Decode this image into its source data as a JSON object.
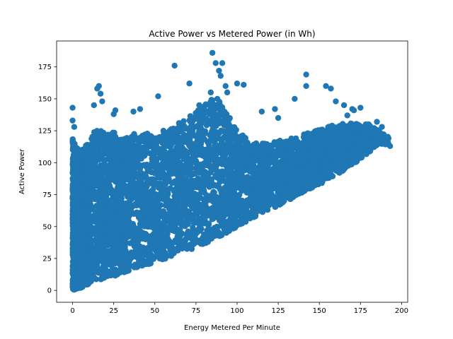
{
  "chart_data": {
    "type": "scatter",
    "title": "Active Power vs Metered Power (in Wh)",
    "xlabel": "Energy Metered Per Minute",
    "ylabel": "Active Power",
    "xlim": [
      -9.7,
      203.7
    ],
    "ylim": [
      -9.3,
      195.3
    ],
    "xticks": [
      0,
      25,
      50,
      75,
      100,
      125,
      150,
      175,
      200
    ],
    "yticks": [
      0,
      25,
      50,
      75,
      100,
      125,
      150,
      175
    ],
    "grid": false,
    "legend": "none",
    "marker": "circle",
    "point_color": "#1f77b4",
    "cloud_bands": [
      {
        "x": 0,
        "y_low": 0,
        "y_high": 120
      },
      {
        "x": 2,
        "y_low": 1,
        "y_high": 112
      },
      {
        "x": 5,
        "y_low": 2,
        "y_high": 110
      },
      {
        "x": 10,
        "y_low": 5,
        "y_high": 118
      },
      {
        "x": 15,
        "y_low": 7,
        "y_high": 128
      },
      {
        "x": 20,
        "y_low": 9,
        "y_high": 122
      },
      {
        "x": 25,
        "y_low": 11,
        "y_high": 125
      },
      {
        "x": 30,
        "y_low": 13,
        "y_high": 118
      },
      {
        "x": 40,
        "y_low": 18,
        "y_high": 124
      },
      {
        "x": 50,
        "y_low": 22,
        "y_high": 122
      },
      {
        "x": 60,
        "y_low": 26,
        "y_high": 128
      },
      {
        "x": 70,
        "y_low": 31,
        "y_high": 135
      },
      {
        "x": 80,
        "y_low": 36,
        "y_high": 145
      },
      {
        "x": 85,
        "y_low": 39,
        "y_high": 150
      },
      {
        "x": 90,
        "y_low": 42,
        "y_high": 148
      },
      {
        "x": 100,
        "y_low": 50,
        "y_high": 125
      },
      {
        "x": 110,
        "y_low": 57,
        "y_high": 115
      },
      {
        "x": 120,
        "y_low": 63,
        "y_high": 116
      },
      {
        "x": 130,
        "y_low": 70,
        "y_high": 118
      },
      {
        "x": 140,
        "y_low": 76,
        "y_high": 122
      },
      {
        "x": 150,
        "y_low": 83,
        "y_high": 126
      },
      {
        "x": 160,
        "y_low": 90,
        "y_high": 130
      },
      {
        "x": 170,
        "y_low": 98,
        "y_high": 131
      },
      {
        "x": 180,
        "y_low": 108,
        "y_high": 130
      },
      {
        "x": 186,
        "y_low": 115,
        "y_high": 125
      },
      {
        "x": 192,
        "y_low": 114,
        "y_high": 120
      }
    ],
    "outliers": [
      [
        0,
        143
      ],
      [
        0,
        133
      ],
      [
        1,
        128
      ],
      [
        15,
        158
      ],
      [
        16,
        160
      ],
      [
        17,
        154
      ],
      [
        13,
        145
      ],
      [
        18,
        148
      ],
      [
        25,
        138
      ],
      [
        26,
        141
      ],
      [
        37,
        140
      ],
      [
        41,
        142
      ],
      [
        52,
        152
      ],
      [
        62,
        176
      ],
      [
        71,
        162
      ],
      [
        77,
        145
      ],
      [
        80,
        142
      ],
      [
        84,
        155
      ],
      [
        85,
        186
      ],
      [
        87,
        178
      ],
      [
        89,
        172
      ],
      [
        90,
        168
      ],
      [
        91,
        178
      ],
      [
        93,
        160
      ],
      [
        88,
        150
      ],
      [
        94,
        155
      ],
      [
        104,
        161
      ],
      [
        100,
        162
      ],
      [
        115,
        140
      ],
      [
        123,
        142
      ],
      [
        125,
        135
      ],
      [
        135,
        150
      ],
      [
        142,
        169
      ],
      [
        142,
        160
      ],
      [
        154,
        160
      ],
      [
        157,
        158
      ],
      [
        160,
        148
      ],
      [
        165,
        145
      ],
      [
        170,
        142
      ],
      [
        175,
        143
      ],
      [
        180,
        130
      ],
      [
        185,
        132
      ],
      [
        188,
        128
      ],
      [
        192,
        119
      ],
      [
        193,
        113
      ],
      [
        171,
        141
      ],
      [
        167,
        137
      ]
    ]
  }
}
